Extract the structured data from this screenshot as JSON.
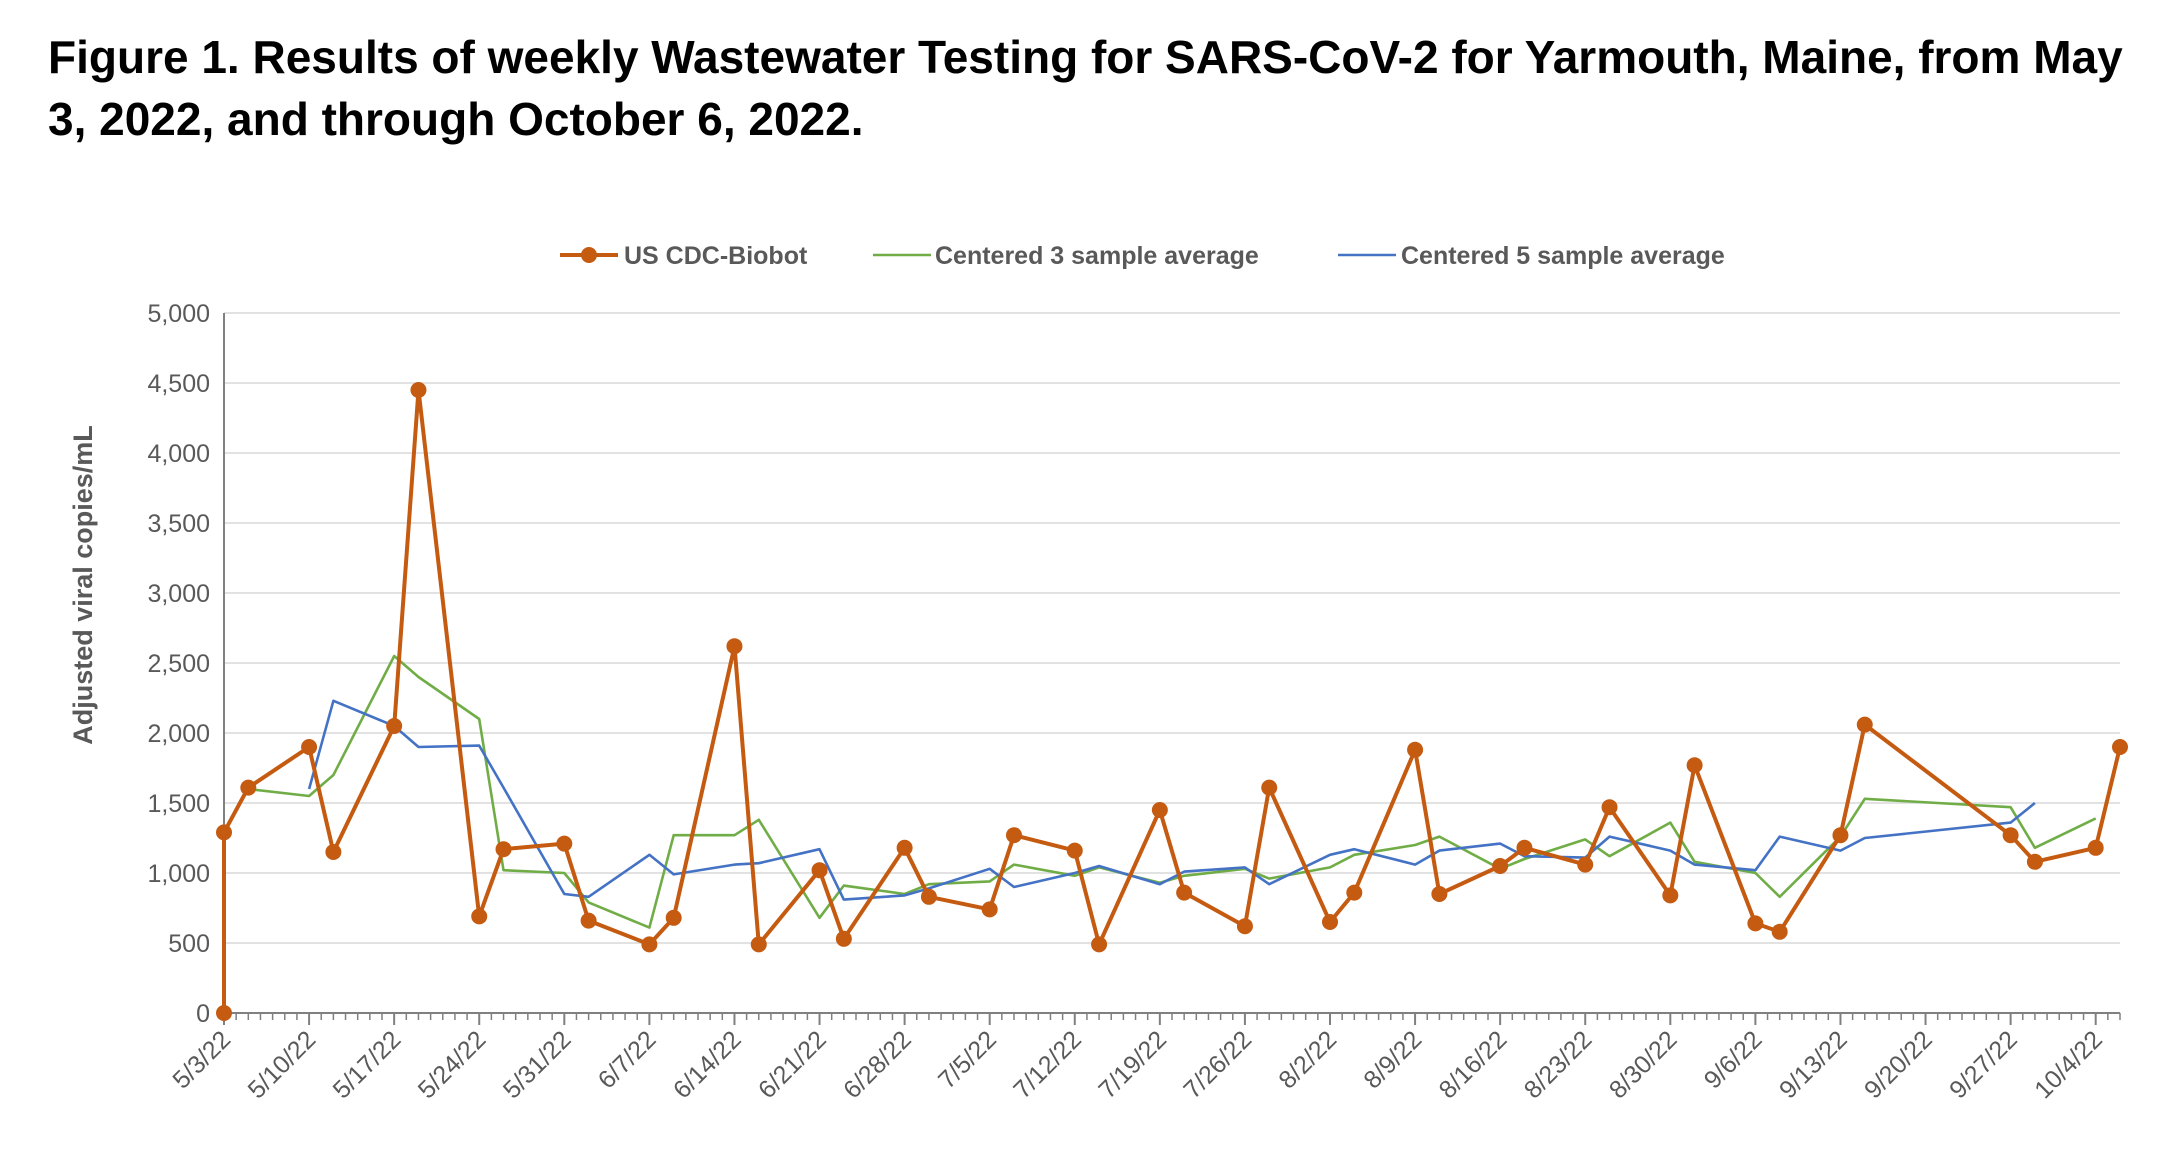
{
  "figure_title": "Figure 1. Results of weekly Wastewater Testing for SARS-CoV-2 for Yarmouth, Maine, from May 3, 2022, and through October 6, 2022.",
  "chart_data": {
    "type": "line",
    "ylabel": "Adjusted viral copies/mL",
    "xlabel": "",
    "ylim": [
      0,
      5000
    ],
    "yticks": [
      0,
      500,
      1000,
      1500,
      2000,
      2500,
      3000,
      3500,
      4000,
      4500,
      5000
    ],
    "ytick_labels": [
      "0",
      "500",
      "1,000",
      "1,500",
      "2,000",
      "2,500",
      "3,000",
      "3,500",
      "4,000",
      "4,500",
      "5,000"
    ],
    "xlim": [
      "2022-05-03",
      "2022-10-06"
    ],
    "xtick_labels": [
      "5/3/22",
      "5/10/22",
      "5/17/22",
      "5/24/22",
      "5/31/22",
      "6/7/22",
      "6/14/22",
      "6/21/22",
      "6/28/22",
      "7/5/22",
      "7/12/22",
      "7/19/22",
      "7/26/22",
      "8/2/22",
      "8/9/22",
      "8/16/22",
      "8/23/22",
      "8/30/22",
      "9/6/22",
      "9/13/22",
      "9/20/22",
      "9/27/22",
      "10/4/22"
    ],
    "grid": "horizontal",
    "legend_position": "top",
    "series": [
      {
        "name": "US CDC-Biobot",
        "color": "#C55A11",
        "markers": true,
        "points": [
          [
            "2022-05-03",
            0
          ],
          [
            "2022-05-03",
            1290
          ],
          [
            "2022-05-05",
            1610
          ],
          [
            "2022-05-10",
            1900
          ],
          [
            "2022-05-12",
            1150
          ],
          [
            "2022-05-17",
            2050
          ],
          [
            "2022-05-19",
            4450
          ],
          [
            "2022-05-24",
            690
          ],
          [
            "2022-05-26",
            1170
          ],
          [
            "2022-05-31",
            1210
          ],
          [
            "2022-06-02",
            660
          ],
          [
            "2022-06-07",
            490
          ],
          [
            "2022-06-09",
            680
          ],
          [
            "2022-06-14",
            2620
          ],
          [
            "2022-06-16",
            490
          ],
          [
            "2022-06-21",
            1020
          ],
          [
            "2022-06-23",
            530
          ],
          [
            "2022-06-28",
            1180
          ],
          [
            "2022-06-30",
            830
          ],
          [
            "2022-07-05",
            740
          ],
          [
            "2022-07-07",
            1270
          ],
          [
            "2022-07-12",
            1160
          ],
          [
            "2022-07-14",
            490
          ],
          [
            "2022-07-19",
            1450
          ],
          [
            "2022-07-21",
            860
          ],
          [
            "2022-07-26",
            620
          ],
          [
            "2022-07-28",
            1610
          ],
          [
            "2022-08-02",
            650
          ],
          [
            "2022-08-04",
            860
          ],
          [
            "2022-08-09",
            1880
          ],
          [
            "2022-08-11",
            850
          ],
          [
            "2022-08-16",
            1050
          ],
          [
            "2022-08-18",
            1180
          ],
          [
            "2022-08-23",
            1060
          ],
          [
            "2022-08-25",
            1470
          ],
          [
            "2022-08-30",
            840
          ],
          [
            "2022-09-01",
            1770
          ],
          [
            "2022-09-06",
            640
          ],
          [
            "2022-09-08",
            580
          ],
          [
            "2022-09-13",
            1270
          ],
          [
            "2022-09-15",
            2060
          ],
          [
            "2022-09-27",
            1270
          ],
          [
            "2022-09-29",
            1080
          ],
          [
            "2022-10-04",
            1180
          ],
          [
            "2022-10-06",
            1900
          ]
        ]
      },
      {
        "name": "Centered 3 sample average",
        "color": "#70AD47",
        "markers": false,
        "points": [
          [
            "2022-05-05",
            1600
          ],
          [
            "2022-05-10",
            1550
          ],
          [
            "2022-05-12",
            1700
          ],
          [
            "2022-05-17",
            2550
          ],
          [
            "2022-05-19",
            2400
          ],
          [
            "2022-05-24",
            2100
          ],
          [
            "2022-05-26",
            1020
          ],
          [
            "2022-05-31",
            1000
          ],
          [
            "2022-06-02",
            790
          ],
          [
            "2022-06-07",
            610
          ],
          [
            "2022-06-09",
            1270
          ],
          [
            "2022-06-14",
            1270
          ],
          [
            "2022-06-16",
            1380
          ],
          [
            "2022-06-21",
            680
          ],
          [
            "2022-06-23",
            910
          ],
          [
            "2022-06-28",
            850
          ],
          [
            "2022-06-30",
            920
          ],
          [
            "2022-07-05",
            940
          ],
          [
            "2022-07-07",
            1060
          ],
          [
            "2022-07-12",
            980
          ],
          [
            "2022-07-14",
            1040
          ],
          [
            "2022-07-19",
            930
          ],
          [
            "2022-07-21",
            980
          ],
          [
            "2022-07-26",
            1030
          ],
          [
            "2022-07-28",
            960
          ],
          [
            "2022-08-02",
            1040
          ],
          [
            "2022-08-04",
            1130
          ],
          [
            "2022-08-09",
            1200
          ],
          [
            "2022-08-11",
            1260
          ],
          [
            "2022-08-16",
            1030
          ],
          [
            "2022-08-18",
            1100
          ],
          [
            "2022-08-23",
            1240
          ],
          [
            "2022-08-25",
            1120
          ],
          [
            "2022-08-30",
            1360
          ],
          [
            "2022-09-01",
            1080
          ],
          [
            "2022-09-06",
            1000
          ],
          [
            "2022-09-08",
            830
          ],
          [
            "2022-09-13",
            1260
          ],
          [
            "2022-09-15",
            1530
          ],
          [
            "2022-09-27",
            1470
          ],
          [
            "2022-09-29",
            1180
          ],
          [
            "2022-10-04",
            1390
          ]
        ]
      },
      {
        "name": "Centered 5 sample average",
        "color": "#4472C4",
        "markers": false,
        "points": [
          [
            "2022-05-10",
            1600
          ],
          [
            "2022-05-12",
            2230
          ],
          [
            "2022-05-17",
            2050
          ],
          [
            "2022-05-19",
            1900
          ],
          [
            "2022-05-24",
            1910
          ],
          [
            "2022-05-26",
            1610
          ],
          [
            "2022-05-31",
            850
          ],
          [
            "2022-06-02",
            830
          ],
          [
            "2022-06-07",
            1130
          ],
          [
            "2022-06-09",
            990
          ],
          [
            "2022-06-14",
            1060
          ],
          [
            "2022-06-16",
            1070
          ],
          [
            "2022-06-21",
            1170
          ],
          [
            "2022-06-23",
            810
          ],
          [
            "2022-06-28",
            840
          ],
          [
            "2022-06-30",
            890
          ],
          [
            "2022-07-05",
            1030
          ],
          [
            "2022-07-07",
            900
          ],
          [
            "2022-07-12",
            1000
          ],
          [
            "2022-07-14",
            1050
          ],
          [
            "2022-07-19",
            920
          ],
          [
            "2022-07-21",
            1010
          ],
          [
            "2022-07-26",
            1040
          ],
          [
            "2022-07-28",
            920
          ],
          [
            "2022-08-02",
            1130
          ],
          [
            "2022-08-04",
            1170
          ],
          [
            "2022-08-09",
            1060
          ],
          [
            "2022-08-11",
            1160
          ],
          [
            "2022-08-16",
            1210
          ],
          [
            "2022-08-18",
            1120
          ],
          [
            "2022-08-23",
            1110
          ],
          [
            "2022-08-25",
            1260
          ],
          [
            "2022-08-30",
            1160
          ],
          [
            "2022-09-01",
            1060
          ],
          [
            "2022-09-06",
            1020
          ],
          [
            "2022-09-08",
            1260
          ],
          [
            "2022-09-13",
            1160
          ],
          [
            "2022-09-15",
            1250
          ],
          [
            "2022-09-27",
            1360
          ],
          [
            "2022-09-29",
            1500
          ]
        ]
      }
    ]
  }
}
